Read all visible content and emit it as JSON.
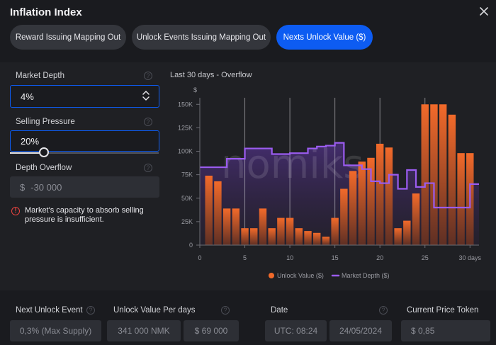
{
  "header": {
    "title": "Inflation Index"
  },
  "tabs": [
    {
      "label": "Reward Issuing Mapping Out",
      "active": false
    },
    {
      "label": "Unlock Events Issuing Mapping Out",
      "active": false
    },
    {
      "label": "Nexts Unlock Value ($)",
      "active": true
    }
  ],
  "controls": {
    "market_depth": {
      "label": "Market Depth",
      "value": "4%"
    },
    "selling_pressure": {
      "label": "Selling Pressure",
      "value": "20%",
      "slider_fraction": 0.23
    },
    "depth_overflow": {
      "label": "Depth Overflow",
      "currency": "$",
      "value": "-30 000"
    },
    "warning": "Market's capacity to absorb selling pressure is insufficient."
  },
  "colors": {
    "accent": "#0d5cf2",
    "bar": "#f26a2a",
    "line": "#9b5cf0",
    "warning": "#e8433f"
  },
  "chart_title": "Last 30 days - Overflow",
  "chart_data": {
    "type": "bar",
    "y_unit": "$",
    "x_ticks": [
      "0",
      "5",
      "10",
      "15",
      "20",
      "25",
      "30 days"
    ],
    "x_tick_values": [
      0,
      5,
      10,
      15,
      20,
      25,
      30
    ],
    "y_ticks": [
      "0",
      "25K",
      "50K",
      "75K",
      "100K",
      "125K",
      "150K"
    ],
    "y_tick_values": [
      0,
      25000,
      50000,
      75000,
      100000,
      125000,
      150000
    ],
    "xlim": [
      0,
      31
    ],
    "ylim": [
      0,
      157000
    ],
    "grid_x": [
      5,
      10,
      15,
      20,
      25
    ],
    "watermark": "nomiks",
    "series": [
      {
        "name": "Unlock Value ($)",
        "type": "bar",
        "x": [
          1,
          2,
          3,
          4,
          5,
          6,
          7,
          8,
          9,
          10,
          11,
          12,
          13,
          14,
          15,
          16,
          17,
          18,
          19,
          20,
          21,
          22,
          23,
          24,
          25,
          26,
          27,
          28,
          29,
          30
        ],
        "values": [
          74000,
          68000,
          39000,
          39000,
          18000,
          18000,
          39000,
          18000,
          29000,
          29000,
          18000,
          15000,
          13000,
          9000,
          29000,
          60000,
          79000,
          89000,
          93000,
          108000,
          104000,
          18000,
          26000,
          55000,
          150000,
          150000,
          150000,
          139000,
          98000,
          98000
        ]
      },
      {
        "name": "Market Depth ($)",
        "type": "line",
        "step_x": [
          0,
          2,
          3,
          4,
          5,
          7,
          8,
          9,
          10,
          11,
          12,
          13,
          14,
          15,
          16,
          17,
          18,
          19,
          20,
          21,
          22,
          23,
          24,
          25,
          26,
          27,
          28,
          29,
          30,
          31
        ],
        "values": [
          83000,
          83000,
          92000,
          92000,
          103000,
          103000,
          97000,
          97000,
          98000,
          98000,
          103000,
          105000,
          106000,
          109000,
          85000,
          85000,
          81000,
          68000,
          66000,
          75000,
          60000,
          80000,
          62000,
          66000,
          40000,
          40000,
          40000,
          40000,
          65000,
          65000
        ]
      }
    ]
  },
  "footer": {
    "next_unlock_event": {
      "label": "Next Unlock Event",
      "value": "0,3% (Max Supply)"
    },
    "unlock_value_per_days": {
      "label": "Unlock Value Per days",
      "amount": "341 000 NMK",
      "usd": "$ 69 000"
    },
    "date": {
      "label": "Date",
      "time": "UTC: 08:24",
      "day": "24/05/2024"
    },
    "current_price_token": {
      "label": "Current Price Token",
      "value": "$ 0,85"
    }
  }
}
